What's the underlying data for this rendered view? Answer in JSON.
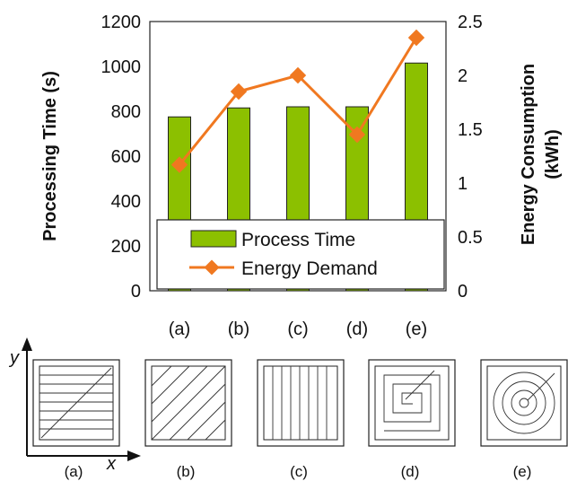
{
  "chart_data": {
    "type": "bar",
    "categories": [
      "(a)",
      "(b)",
      "(c)",
      "(d)",
      "(e)"
    ],
    "series": [
      {
        "name": "Process Time",
        "kind": "bar",
        "axis": "left",
        "values": [
          775,
          815,
          820,
          820,
          1015
        ],
        "color": "#8cc000"
      },
      {
        "name": "Energy Demand",
        "kind": "line",
        "axis": "right",
        "values": [
          1.17,
          1.85,
          2.0,
          1.45,
          2.35
        ],
        "color": "#f07820",
        "marker": "diamond"
      }
    ],
    "ylabel": "Processing Time (s)",
    "ylabel_right_line1": "Energy Consumption",
    "ylabel_right_line2": "(kWh)",
    "ylim": [
      0,
      1200
    ],
    "ylim_right": [
      0,
      2.5
    ],
    "yticks": [
      "0",
      "200",
      "400",
      "600",
      "800",
      "1000",
      "1200"
    ],
    "yticks_right": [
      "0",
      "0.5",
      "1",
      "1.5",
      "2",
      "2.5"
    ],
    "legend_position": "bottom-center"
  },
  "diagram": {
    "axis_y_label": "y",
    "axis_x_label": "x",
    "panels": [
      {
        "label": "(a)",
        "pattern": "horizontal-zigzag"
      },
      {
        "label": "(b)",
        "pattern": "diagonal-hatch"
      },
      {
        "label": "(c)",
        "pattern": "vertical-lines"
      },
      {
        "label": "(d)",
        "pattern": "square-spiral"
      },
      {
        "label": "(e)",
        "pattern": "circular-spiral"
      }
    ]
  }
}
